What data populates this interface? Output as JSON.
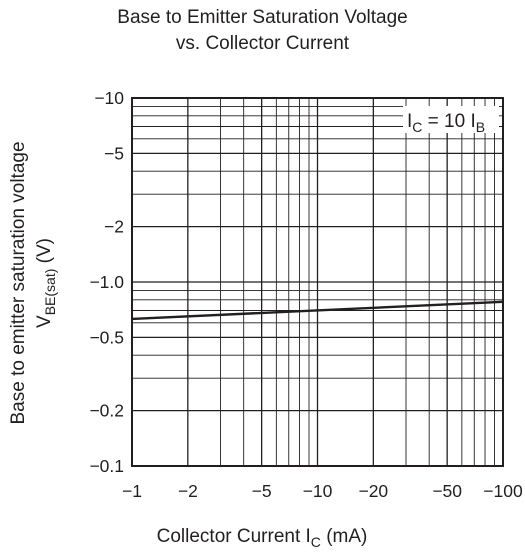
{
  "chart_data": {
    "type": "line",
    "title": "Base to Emitter Saturation Voltage",
    "subtitle": "vs. Collector Current",
    "xlabel": {
      "main": "Collector Current  I",
      "sub": "C",
      "unit": "  (mA)"
    },
    "ylabel": {
      "line1": "Base to emitter saturation voltage",
      "main": "V",
      "sub": "BE(sat)",
      "unit": "  (V)"
    },
    "x_scale": "log",
    "y_scale": "log",
    "xlim": [
      -1,
      -100
    ],
    "ylim": [
      -0.1,
      -10
    ],
    "x_ticks": [
      {
        "value": -1,
        "label": "−1"
      },
      {
        "value": -2,
        "label": "−2"
      },
      {
        "value": -5,
        "label": "−5"
      },
      {
        "value": -10,
        "label": "−10"
      },
      {
        "value": -20,
        "label": "−20"
      },
      {
        "value": -50,
        "label": "−50"
      },
      {
        "value": -100,
        "label": "−100"
      }
    ],
    "y_ticks": [
      {
        "value": -10,
        "label": "−10"
      },
      {
        "value": -5,
        "label": "−5"
      },
      {
        "value": -2,
        "label": "−2"
      },
      {
        "value": -1,
        "label": "−1.0"
      },
      {
        "value": -0.5,
        "label": "−0.5"
      },
      {
        "value": -0.2,
        "label": "−0.2"
      },
      {
        "value": -0.1,
        "label": "−0.1"
      }
    ],
    "grid": true,
    "annotation": {
      "main": "I",
      "sub1": "C",
      "mid": " = 10 I",
      "sub2": "B"
    },
    "series": [
      {
        "x": [
          -1,
          -100
        ],
        "y": [
          -0.63,
          -0.78
        ]
      }
    ]
  }
}
